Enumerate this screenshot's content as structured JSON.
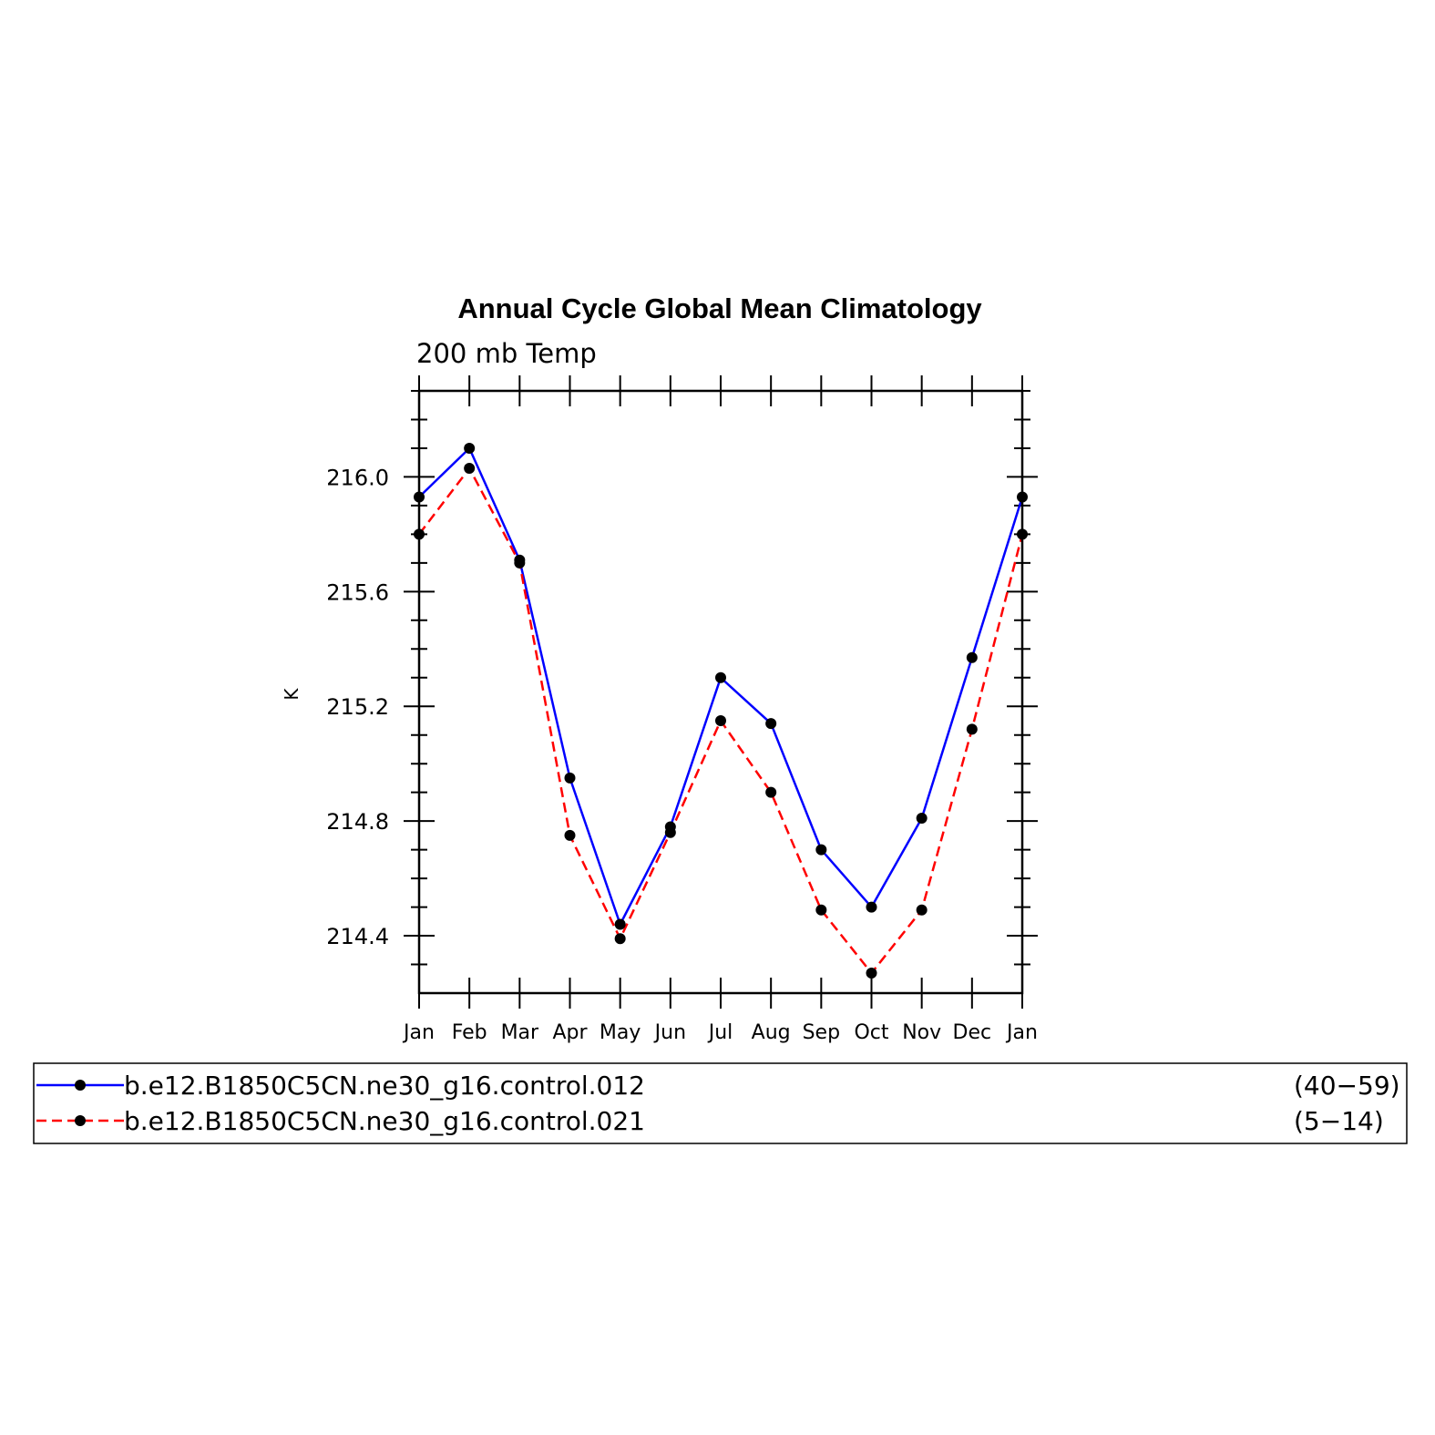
{
  "chart_data": {
    "type": "line",
    "title": "Annual Cycle Global Mean Climatology",
    "subtitle": "200 mb Temp",
    "xlabel": "",
    "ylabel": "K",
    "categories": [
      "Jan",
      "Feb",
      "Mar",
      "Apr",
      "May",
      "Jun",
      "Jul",
      "Aug",
      "Sep",
      "Oct",
      "Nov",
      "Dec",
      "Jan"
    ],
    "ylim": [
      214.2,
      216.3
    ],
    "yticks": [
      "216.0",
      "215.6",
      "215.2",
      "214.8",
      "214.4"
    ],
    "ytick_values": [
      216.0,
      215.6,
      215.2,
      214.8,
      214.4
    ],
    "grid": false,
    "legend_placement": "bottom",
    "series": [
      {
        "name": "b.e12.B1850C5CN.ne30_g16.control.012",
        "years": "(40−59)",
        "color": "#0000ff",
        "dash": "solid",
        "values": [
          215.93,
          216.1,
          215.71,
          214.95,
          214.44,
          214.78,
          215.3,
          215.14,
          214.7,
          214.5,
          214.81,
          215.37,
          215.93
        ]
      },
      {
        "name": "b.e12.B1850C5CN.ne30_g16.control.021",
        "years": "(5−14)",
        "color": "#ff0000",
        "dash": "dashed",
        "values": [
          215.8,
          216.03,
          215.7,
          214.75,
          214.39,
          214.76,
          215.15,
          214.9,
          214.49,
          214.27,
          214.49,
          215.12,
          215.8
        ]
      }
    ]
  }
}
